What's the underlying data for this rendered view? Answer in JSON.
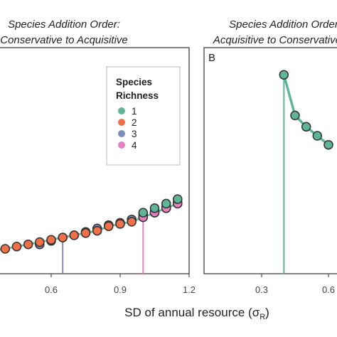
{
  "chart_data": [
    {
      "panel": "A",
      "type": "scatter",
      "title_line1": "Species Addition Order:",
      "title_line2": "Conservative to Acquisitive",
      "panel_label": "",
      "xlabel": "SD of annual resource (σ",
      "xlabel_sub": "R",
      "xlabel_end": ")",
      "xticks": [
        "0.6",
        "0.9",
        "1.2"
      ],
      "xlim": [
        0.3,
        1.2
      ],
      "ylim": [
        0,
        1
      ],
      "legend": {
        "title_line1": "Species",
        "title_line2": "Richness",
        "placement": "top-right",
        "items": [
          {
            "label": "1",
            "color": "#5fb596"
          },
          {
            "label": "2",
            "color": "#f0704a"
          },
          {
            "label": "3",
            "color": "#7c8dbd"
          },
          {
            "label": "4",
            "color": "#e57fc1"
          }
        ]
      },
      "line_color": "#5fb596",
      "series": [
        {
          "richness": 1,
          "color": "#5fb596",
          "x": [
            1.0,
            1.05,
            1.1,
            1.15
          ],
          "y": [
            0.27,
            0.29,
            0.31,
            0.33
          ]
        },
        {
          "richness": 2,
          "color": "#f0704a",
          "x": [
            0.3,
            0.35,
            0.4,
            0.45,
            0.5,
            0.55,
            0.6,
            0.65,
            0.7,
            0.75,
            0.8,
            0.85,
            0.9,
            0.95,
            1.0,
            1.05,
            1.1,
            1.15
          ],
          "y": [
            0.1,
            0.105,
            0.11,
            0.12,
            0.13,
            0.14,
            0.15,
            0.16,
            0.17,
            0.18,
            0.19,
            0.21,
            0.22,
            0.23,
            0.25,
            0.27,
            0.29,
            0.31
          ]
        },
        {
          "richness": 3,
          "color": "#7c8dbd",
          "x": [
            0.55,
            0.6,
            0.65,
            0.7,
            0.75,
            0.8,
            0.85,
            0.9,
            0.95,
            1.0,
            1.05,
            1.1,
            1.15
          ],
          "y": [
            0.13,
            0.145,
            0.16,
            0.17,
            0.185,
            0.2,
            0.215,
            0.225,
            0.24,
            0.26,
            0.275,
            0.295,
            0.315
          ]
        },
        {
          "richness": 4,
          "color": "#e57fc1",
          "x": [
            1.0,
            1.05,
            1.1,
            1.15
          ],
          "y": [
            0.25,
            0.27,
            0.29,
            0.31
          ]
        }
      ],
      "thresholds": [
        {
          "x": 0.65,
          "color": "#7c8dbd"
        },
        {
          "x": 1.0,
          "color": "#e57fc1"
        }
      ]
    },
    {
      "panel": "B",
      "type": "line",
      "title_line1": "Species Addition Order:",
      "title_line2": "Acquisitive to Conservative",
      "panel_label": "B",
      "xticks": [
        "0.3",
        "0.6"
      ],
      "xlim": [
        0.3,
        1.2
      ],
      "ylim": [
        0,
        1
      ],
      "line_color": "#5fb596",
      "series": [
        {
          "richness": 1,
          "color": "#5fb596",
          "x": [
            0.4,
            0.45,
            0.5,
            0.55,
            0.6
          ],
          "y": [
            0.88,
            0.7,
            0.65,
            0.61,
            0.57
          ]
        }
      ],
      "thresholds": [
        {
          "x": 0.4,
          "color": "#5fb596"
        }
      ]
    }
  ]
}
